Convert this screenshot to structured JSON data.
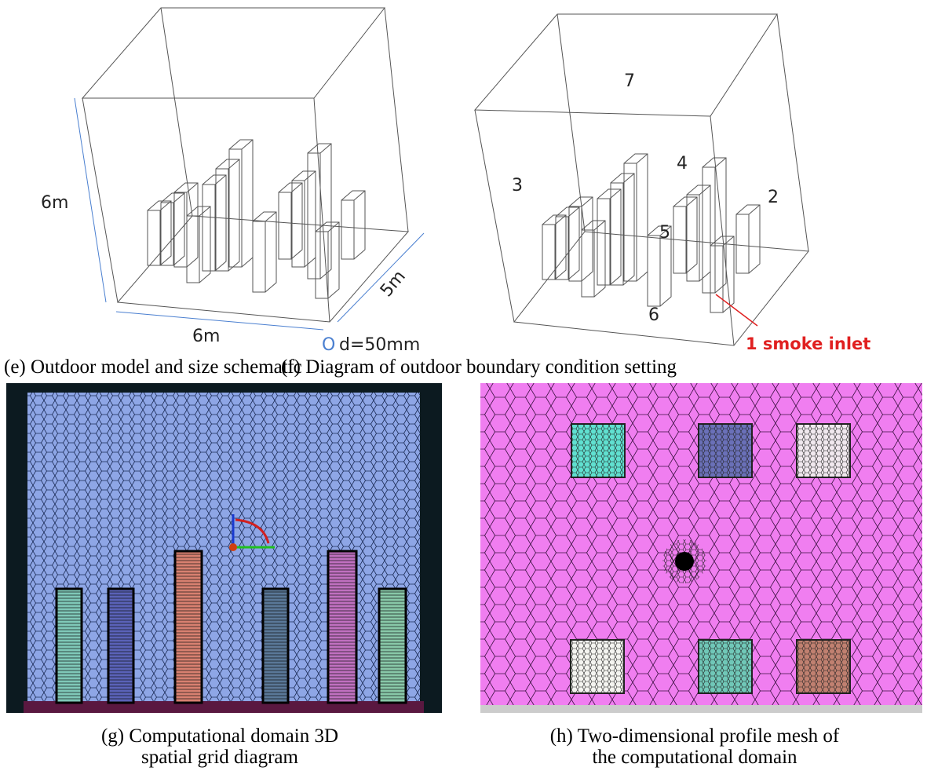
{
  "panels": [
    {
      "caption": "(e) Outdoor model and size schematic",
      "labels": {
        "height": "6m",
        "width": "6m",
        "depth": "5m",
        "origin": "O",
        "diameter": "d=50mm"
      }
    },
    {
      "caption": "(f) Diagram of outdoor boundary condition setting",
      "boundaries": [
        "7",
        "3",
        "4",
        "2",
        "5",
        "6"
      ],
      "inlet": "1 smoke inlet"
    },
    {
      "caption_lines": [
        "(g) Computational domain 3D",
        "spatial grid diagram"
      ]
    },
    {
      "caption_lines": [
        "(h) Two-dimensional profile mesh of",
        "the computational domain"
      ]
    }
  ]
}
